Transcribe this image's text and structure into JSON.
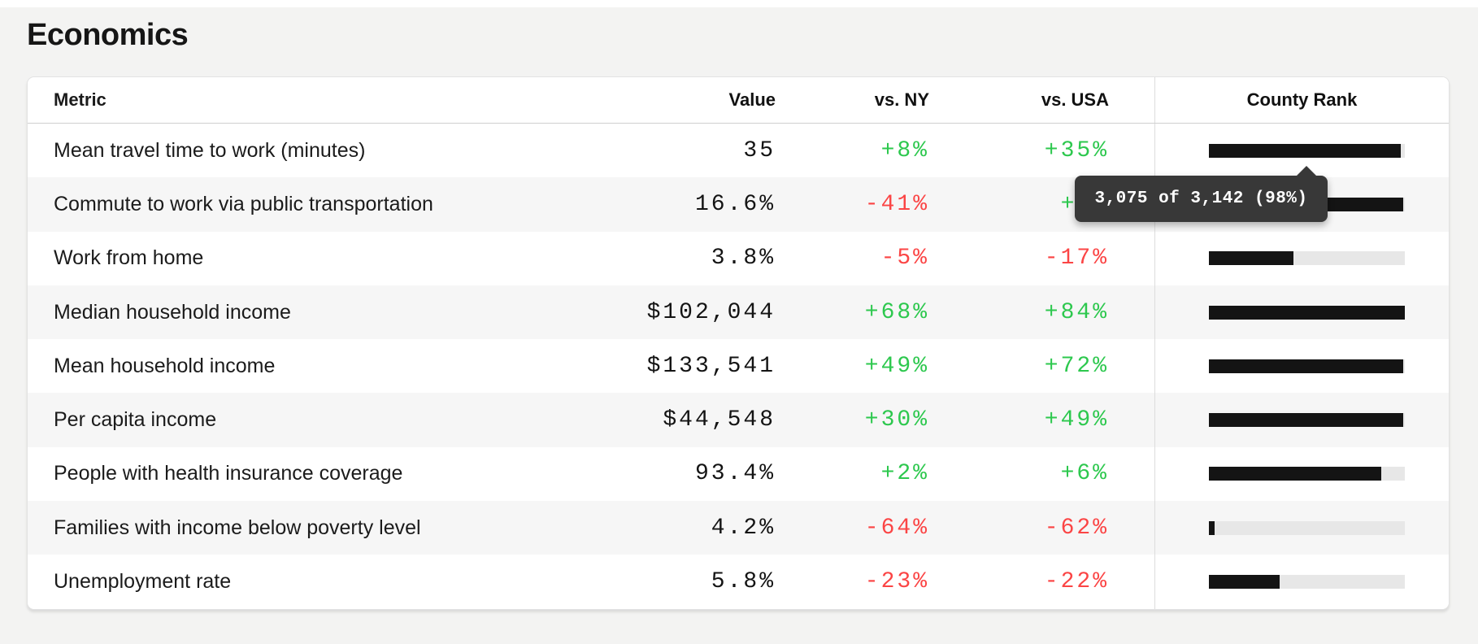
{
  "page": {
    "title": "Economics"
  },
  "table": {
    "columns": {
      "metric": "Metric",
      "value": "Value",
      "vs_ny": "vs. NY",
      "vs_usa": "vs. USA",
      "county_rank": "County Rank"
    },
    "rows": [
      {
        "metric": "Mean travel time to work (minutes)",
        "value": "35",
        "vs_ny": "+8%",
        "vs_usa": "+35%",
        "rank_pct": 98
      },
      {
        "metric": "Commute to work via public transportation",
        "value": "16.6%",
        "vs_ny": "-41%",
        "vs_usa": "+22",
        "rank_pct": 99
      },
      {
        "metric": "Work from home",
        "value": "3.8%",
        "vs_ny": "-5%",
        "vs_usa": "-17%",
        "rank_pct": 43
      },
      {
        "metric": "Median household income",
        "value": "$102,044",
        "vs_ny": "+68%",
        "vs_usa": "+84%",
        "rank_pct": 100
      },
      {
        "metric": "Mean household income",
        "value": "$133,541",
        "vs_ny": "+49%",
        "vs_usa": "+72%",
        "rank_pct": 99
      },
      {
        "metric": "Per capita income",
        "value": "$44,548",
        "vs_ny": "+30%",
        "vs_usa": "+49%",
        "rank_pct": 99
      },
      {
        "metric": "People with health insurance coverage",
        "value": "93.4%",
        "vs_ny": "+2%",
        "vs_usa": "+6%",
        "rank_pct": 88
      },
      {
        "metric": "Families with income below poverty level",
        "value": "4.2%",
        "vs_ny": "-64%",
        "vs_usa": "-62%",
        "rank_pct": 3
      },
      {
        "metric": "Unemployment rate",
        "value": "5.8%",
        "vs_ny": "-23%",
        "vs_usa": "-22%",
        "rank_pct": 36
      }
    ]
  },
  "tooltip": {
    "text": "3,075 of 3,142 (98%)",
    "attached_row": "Mean travel time to work (minutes)"
  },
  "colors": {
    "positive": "#2dc84e",
    "negative": "#fb4545",
    "bar_fill": "#141414",
    "bar_track": "#e7e7e7",
    "tooltip_bg": "#383838",
    "row_alt": "#f6f6f6",
    "page_bg": "#f3f3f2"
  }
}
